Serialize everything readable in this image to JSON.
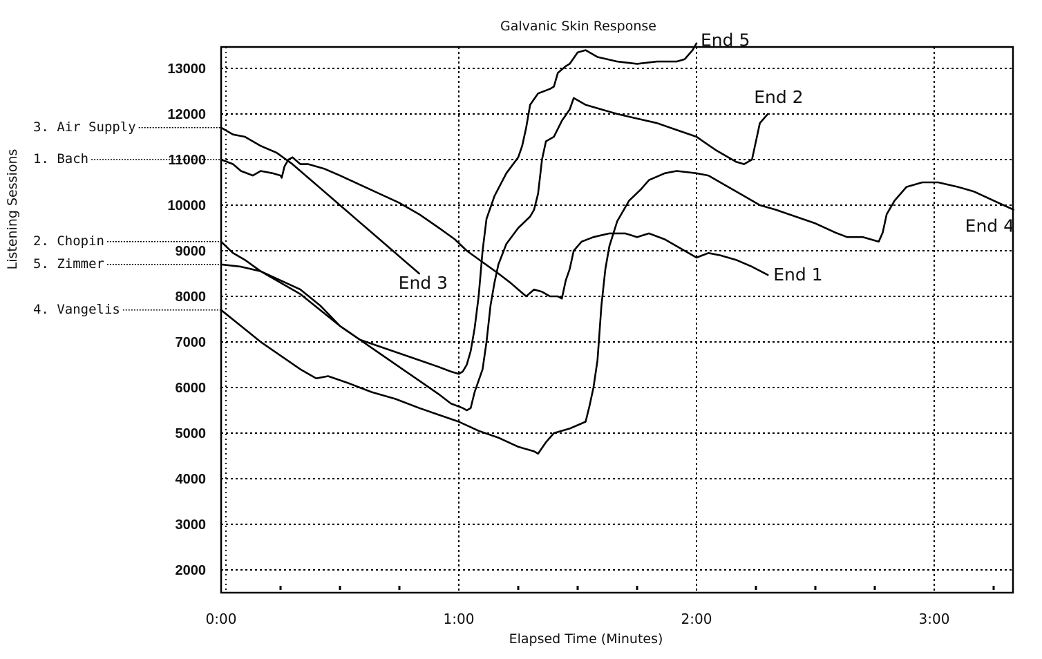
{
  "chart_data": {
    "type": "line",
    "title": "Galvanic Skin Response",
    "xlabel": "Elapsed Time (Minutes)",
    "ylabel": "Listening Sessions",
    "xlim": [
      0,
      200
    ],
    "ylim": [
      1500,
      13500
    ],
    "grid": true,
    "x_ticks": [
      {
        "value": 0,
        "label": "0:00"
      },
      {
        "value": 60,
        "label": "1:00"
      },
      {
        "value": 120,
        "label": "2:00"
      },
      {
        "value": 180,
        "label": "3:00"
      }
    ],
    "y_ticks": [
      2000,
      3000,
      4000,
      5000,
      6000,
      7000,
      8000,
      9000,
      10000,
      11000,
      12000,
      13000
    ],
    "legend": [
      {
        "label": "3. Air Supply",
        "y": 11700
      },
      {
        "label": "1. Bach",
        "y": 11000
      },
      {
        "label": "2. Chopin",
        "y": 9200
      },
      {
        "label": "5. Zimmer",
        "y": 8700
      },
      {
        "label": "4. Vangelis",
        "y": 7700
      }
    ],
    "series": [
      {
        "name": "1. Bach",
        "end_label": "End 1",
        "points": [
          [
            0,
            11000
          ],
          [
            3,
            10900
          ],
          [
            5,
            10750
          ],
          [
            8,
            10650
          ],
          [
            10,
            10750
          ],
          [
            13,
            10700
          ],
          [
            15,
            10650
          ],
          [
            15.3,
            10600
          ],
          [
            16,
            10850
          ],
          [
            17,
            11000
          ],
          [
            18,
            11050
          ],
          [
            20,
            10900
          ],
          [
            22,
            10900
          ],
          [
            26,
            10800
          ],
          [
            30,
            10650
          ],
          [
            35,
            10450
          ],
          [
            40,
            10250
          ],
          [
            45,
            10050
          ],
          [
            50,
            9800
          ],
          [
            55,
            9500
          ],
          [
            59,
            9250
          ],
          [
            62,
            9000
          ],
          [
            66,
            8750
          ],
          [
            70,
            8500
          ],
          [
            73,
            8300
          ],
          [
            75,
            8150
          ],
          [
            77,
            8000
          ],
          [
            79,
            8150
          ],
          [
            81,
            8100
          ],
          [
            83,
            8000
          ],
          [
            85,
            8000
          ],
          [
            86,
            7950
          ],
          [
            87,
            8350
          ],
          [
            88,
            8600
          ],
          [
            89,
            9000
          ],
          [
            91,
            9200
          ],
          [
            94,
            9300
          ],
          [
            98,
            9380
          ],
          [
            102,
            9380
          ],
          [
            105,
            9300
          ],
          [
            108,
            9380
          ],
          [
            112,
            9250
          ],
          [
            116,
            9050
          ],
          [
            120,
            8850
          ],
          [
            123,
            8950
          ],
          [
            126,
            8900
          ],
          [
            130,
            8800
          ],
          [
            134,
            8650
          ],
          [
            138,
            8470
          ]
        ]
      },
      {
        "name": "2. Chopin",
        "end_label": "End 2",
        "points": [
          [
            0,
            9200
          ],
          [
            3,
            8950
          ],
          [
            6,
            8800
          ],
          [
            10,
            8550
          ],
          [
            15,
            8300
          ],
          [
            20,
            8050
          ],
          [
            25,
            7700
          ],
          [
            30,
            7350
          ],
          [
            35,
            7050
          ],
          [
            40,
            6750
          ],
          [
            45,
            6450
          ],
          [
            50,
            6150
          ],
          [
            55,
            5850
          ],
          [
            58,
            5650
          ],
          [
            61,
            5550
          ],
          [
            62,
            5500
          ],
          [
            63,
            5550
          ],
          [
            64,
            5900
          ],
          [
            66,
            6400
          ],
          [
            67,
            7000
          ],
          [
            68,
            7800
          ],
          [
            69,
            8300
          ],
          [
            70,
            8700
          ],
          [
            72,
            9150
          ],
          [
            75,
            9500
          ],
          [
            78,
            9750
          ],
          [
            79,
            9900
          ],
          [
            80,
            10250
          ],
          [
            81,
            11000
          ],
          [
            82,
            11400
          ],
          [
            84,
            11500
          ],
          [
            86,
            11850
          ],
          [
            88,
            12100
          ],
          [
            89,
            12350
          ],
          [
            92,
            12200
          ],
          [
            96,
            12100
          ],
          [
            100,
            12000
          ],
          [
            105,
            11900
          ],
          [
            110,
            11800
          ],
          [
            115,
            11650
          ],
          [
            120,
            11500
          ],
          [
            125,
            11200
          ],
          [
            130,
            10950
          ],
          [
            132,
            10900
          ],
          [
            134,
            11000
          ],
          [
            135,
            11400
          ],
          [
            136,
            11800
          ],
          [
            138,
            12000
          ]
        ]
      },
      {
        "name": "3. Air Supply",
        "end_label": "End 3",
        "points": [
          [
            0,
            11700
          ],
          [
            3,
            11550
          ],
          [
            6,
            11500
          ],
          [
            10,
            11300
          ],
          [
            14,
            11150
          ],
          [
            18,
            10900
          ],
          [
            22,
            10600
          ],
          [
            26,
            10300
          ],
          [
            30,
            10000
          ],
          [
            34,
            9700
          ],
          [
            38,
            9400
          ],
          [
            42,
            9100
          ],
          [
            46,
            8800
          ],
          [
            50,
            8500
          ]
        ]
      },
      {
        "name": "4. Vangelis",
        "end_label": "End 4",
        "points": [
          [
            0,
            7700
          ],
          [
            5,
            7350
          ],
          [
            10,
            7000
          ],
          [
            15,
            6700
          ],
          [
            20,
            6400
          ],
          [
            24,
            6200
          ],
          [
            27,
            6250
          ],
          [
            32,
            6100
          ],
          [
            38,
            5900
          ],
          [
            44,
            5750
          ],
          [
            50,
            5550
          ],
          [
            55,
            5400
          ],
          [
            60,
            5250
          ],
          [
            65,
            5050
          ],
          [
            70,
            4900
          ],
          [
            75,
            4700
          ],
          [
            79,
            4600
          ],
          [
            80,
            4550
          ],
          [
            82,
            4800
          ],
          [
            84,
            5000
          ],
          [
            88,
            5100
          ],
          [
            92,
            5250
          ],
          [
            93,
            5600
          ],
          [
            94,
            6000
          ],
          [
            95,
            6600
          ],
          [
            96,
            7800
          ],
          [
            97,
            8600
          ],
          [
            98,
            9100
          ],
          [
            100,
            9650
          ],
          [
            103,
            10100
          ],
          [
            106,
            10350
          ],
          [
            108,
            10550
          ],
          [
            112,
            10700
          ],
          [
            115,
            10750
          ],
          [
            120,
            10700
          ],
          [
            123,
            10650
          ],
          [
            128,
            10400
          ],
          [
            132,
            10200
          ],
          [
            136,
            10000
          ],
          [
            140,
            9900
          ],
          [
            145,
            9750
          ],
          [
            150,
            9600
          ],
          [
            155,
            9400
          ],
          [
            158,
            9300
          ],
          [
            162,
            9300
          ],
          [
            166,
            9200
          ],
          [
            167,
            9400
          ],
          [
            168,
            9800
          ],
          [
            170,
            10100
          ],
          [
            173,
            10400
          ],
          [
            177,
            10500
          ],
          [
            181,
            10500
          ],
          [
            186,
            10400
          ],
          [
            190,
            10300
          ],
          [
            195,
            10100
          ],
          [
            200,
            9900
          ]
        ]
      },
      {
        "name": "5. Zimmer",
        "end_label": "End 5",
        "points": [
          [
            0,
            8700
          ],
          [
            5,
            8650
          ],
          [
            10,
            8550
          ],
          [
            15,
            8350
          ],
          [
            20,
            8150
          ],
          [
            25,
            7800
          ],
          [
            30,
            7350
          ],
          [
            35,
            7050
          ],
          [
            40,
            6900
          ],
          [
            45,
            6750
          ],
          [
            50,
            6600
          ],
          [
            55,
            6450
          ],
          [
            58,
            6350
          ],
          [
            60,
            6300
          ],
          [
            61,
            6350
          ],
          [
            62,
            6500
          ],
          [
            63,
            6800
          ],
          [
            64,
            7300
          ],
          [
            65,
            8000
          ],
          [
            66,
            9000
          ],
          [
            67,
            9700
          ],
          [
            69,
            10200
          ],
          [
            72,
            10700
          ],
          [
            75,
            11050
          ],
          [
            76,
            11300
          ],
          [
            77,
            11700
          ],
          [
            78,
            12200
          ],
          [
            80,
            12450
          ],
          [
            83,
            12550
          ],
          [
            84,
            12600
          ],
          [
            85,
            12900
          ],
          [
            87,
            13050
          ],
          [
            88,
            13100
          ],
          [
            90,
            13350
          ],
          [
            92,
            13400
          ],
          [
            95,
            13250
          ],
          [
            100,
            13150
          ],
          [
            105,
            13100
          ],
          [
            110,
            13150
          ],
          [
            115,
            13150
          ],
          [
            117,
            13200
          ],
          [
            119,
            13400
          ],
          [
            120,
            13550
          ]
        ]
      }
    ]
  }
}
